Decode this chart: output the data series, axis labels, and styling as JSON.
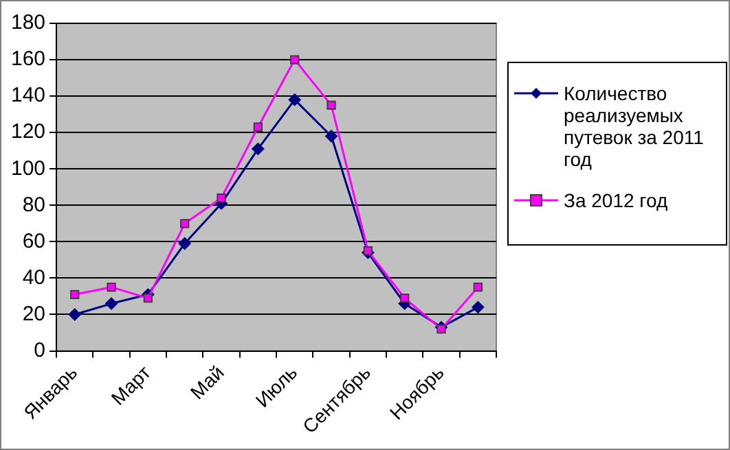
{
  "chart_data": {
    "type": "line",
    "categories": [
      "Январь",
      null,
      "Март",
      null,
      "Май",
      null,
      "Июль",
      null,
      "Сентябрь",
      null,
      "Ноябрь",
      null
    ],
    "series": [
      {
        "name": "Количество реализуемых путевок за 2011 год",
        "color": "#000080",
        "marker": "diamond",
        "values": [
          20,
          26,
          31,
          59,
          81,
          111,
          138,
          118,
          54,
          26,
          13,
          24
        ]
      },
      {
        "name": "За 2012 год",
        "color": "#ff00ff",
        "marker": "square",
        "values": [
          31,
          35,
          29,
          70,
          84,
          123,
          160,
          135,
          55,
          29,
          12,
          35
        ]
      }
    ],
    "ylim": [
      0,
      180
    ],
    "yticks": [
      0,
      20,
      40,
      60,
      80,
      100,
      120,
      140,
      160,
      180
    ],
    "grid": "y",
    "legend": "right"
  }
}
